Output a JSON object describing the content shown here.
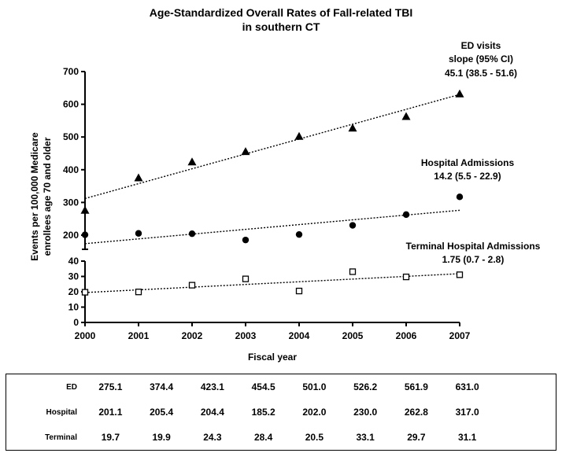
{
  "chart_data": {
    "type": "scatter",
    "title": "Age-Standardized Overall Rates of Fall-related TBI",
    "subtitle": "in southern CT",
    "xlabel": "Fiscal year",
    "ylabel": "Events per 100,000 Medicare enrollees age 70 and older",
    "x": [
      2000,
      2001,
      2002,
      2003,
      2004,
      2005,
      2006,
      2007
    ],
    "x_ticks": [
      "2000",
      "2001",
      "2002",
      "2003",
      "2004",
      "2005",
      "2006",
      "2007"
    ],
    "y_axis_broken": true,
    "y_lower_range": [
      0,
      40
    ],
    "y_lower_ticks": [
      "0",
      "10",
      "20",
      "30",
      "40"
    ],
    "y_upper_range": [
      200,
      700
    ],
    "y_upper_ticks": [
      "200",
      "300",
      "400",
      "500",
      "600",
      "700"
    ],
    "grid": false,
    "series": [
      {
        "key": "ed",
        "values": [
          275.1,
          374.4,
          423.1,
          454.5,
          501.0,
          526.2,
          561.9,
          631.0
        ],
        "marker": "filled-triangle",
        "trend": [
          312,
          630
        ],
        "annotation": [
          "ED visits",
          "slope (95% CI)",
          "45.1 (38.5 - 51.6)"
        ]
      },
      {
        "key": "hospital",
        "values": [
          201.1,
          205.4,
          204.4,
          185.2,
          202.0,
          230.0,
          262.8,
          317.0
        ],
        "marker": "filled-circle",
        "trend": [
          174,
          276
        ],
        "annotation": [
          "Hospital Admissions",
          "14.2 (5.5 - 22.9)"
        ]
      },
      {
        "key": "terminal",
        "values": [
          19.7,
          19.9,
          24.3,
          28.4,
          20.5,
          33.1,
          29.7,
          31.1
        ],
        "marker": "open-square",
        "trend": [
          19.5,
          31.8
        ],
        "annotation": [
          "Terminal Hospital Admissions",
          "1.75 (0.7 - 2.8)"
        ]
      }
    ],
    "table": {
      "columns": [
        "2000",
        "2001",
        "2002",
        "2003",
        "2004",
        "2005",
        "2006",
        "2007"
      ],
      "rows": [
        {
          "label": "ED",
          "cells": [
            "275.1",
            "374.4",
            "423.1",
            "454.5",
            "501.0",
            "526.2",
            "561.9",
            "631.0"
          ]
        },
        {
          "label": "Hospital",
          "cells": [
            "201.1",
            "205.4",
            "204.4",
            "185.2",
            "202.0",
            "230.0",
            "262.8",
            "317.0"
          ]
        },
        {
          "label": "Terminal",
          "cells": [
            "19.7",
            "19.9",
            "24.3",
            "28.4",
            "20.5",
            "33.1",
            "29.7",
            "31.1"
          ]
        }
      ]
    }
  }
}
